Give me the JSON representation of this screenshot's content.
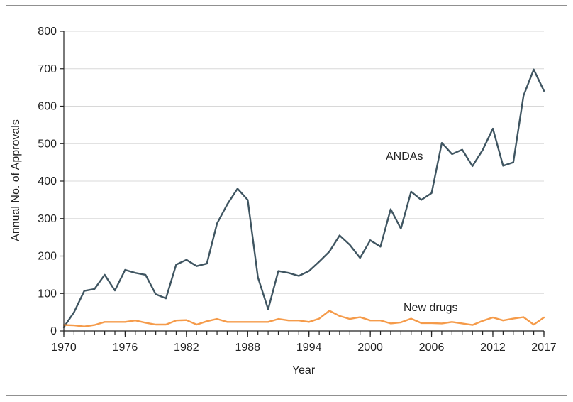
{
  "chart_data": {
    "type": "line",
    "title": "",
    "xlabel": "Year",
    "ylabel": "Annual No. of Approvals",
    "xlim": [
      1970,
      2017
    ],
    "ylim": [
      0,
      800
    ],
    "grid": true,
    "legend": "none",
    "x_tick_labels": [
      "1970",
      "1976",
      "1982",
      "1988",
      "1994",
      "2000",
      "2006",
      "2012",
      "2017"
    ],
    "y_tick_labels": [
      "0",
      "100",
      "200",
      "300",
      "400",
      "500",
      "600",
      "700",
      "800"
    ],
    "x": [
      1970,
      1971,
      1972,
      1973,
      1974,
      1975,
      1976,
      1977,
      1978,
      1979,
      1980,
      1981,
      1982,
      1983,
      1984,
      1985,
      1986,
      1987,
      1988,
      1989,
      1990,
      1991,
      1992,
      1993,
      1994,
      1995,
      1996,
      1997,
      1998,
      1999,
      2000,
      2001,
      2002,
      2003,
      2004,
      2005,
      2006,
      2007,
      2008,
      2009,
      2010,
      2011,
      2012,
      2013,
      2014,
      2015,
      2016,
      2017
    ],
    "series": [
      {
        "name": "ANDAs",
        "color": "#3f5561",
        "values": [
          10,
          50,
          107,
          112,
          150,
          108,
          163,
          155,
          150,
          98,
          87,
          177,
          190,
          173,
          180,
          287,
          338,
          380,
          350,
          143,
          58,
          160,
          155,
          147,
          160,
          185,
          212,
          255,
          230,
          195,
          242,
          225,
          325,
          273,
          372,
          350,
          368,
          502,
          472,
          484,
          440,
          483,
          540,
          441,
          450,
          628,
          698,
          641
        ]
      },
      {
        "name": "New drugs",
        "color": "#f59b4a",
        "values": [
          16,
          15,
          12,
          16,
          24,
          24,
          24,
          28,
          22,
          17,
          17,
          28,
          29,
          17,
          26,
          32,
          24,
          24,
          24,
          24,
          24,
          32,
          28,
          28,
          24,
          33,
          54,
          40,
          32,
          37,
          28,
          28,
          20,
          23,
          33,
          21,
          21,
          20,
          24,
          20,
          16,
          27,
          36,
          28,
          33,
          37,
          17,
          36
        ]
      }
    ]
  }
}
